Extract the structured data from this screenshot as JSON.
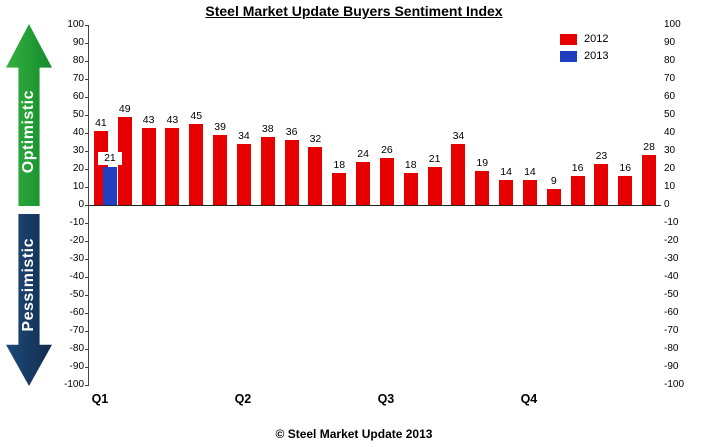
{
  "title": "Steel Market Update Buyers Sentiment Index",
  "footer": "© Steel Market Update 2013",
  "axis": {
    "optimistic_label": "Optimistic",
    "pessimistic_label": "Pessimistic",
    "optimistic_color": "#1f9a34",
    "pessimistic_color": "#17375e"
  },
  "chart_data": {
    "type": "bar",
    "title": "Steel Market Update Buyers Sentiment Index",
    "ylabel": "",
    "xlabel": "",
    "ylim": [
      -100,
      100
    ],
    "y_tick_step": 10,
    "grid": false,
    "legend_position": "top-right",
    "x_tick_labels": [
      "Q1",
      "Q2",
      "Q3",
      "Q4"
    ],
    "x_tick_slots": [
      0.5,
      6.5,
      12.5,
      18.5
    ],
    "series": [
      {
        "name": "2012",
        "color": "#e60000",
        "values": [
          41,
          49,
          43,
          43,
          45,
          39,
          34,
          38,
          36,
          32,
          18,
          24,
          26,
          18,
          21,
          34,
          19,
          14,
          14,
          9,
          16,
          23,
          16,
          28
        ]
      },
      {
        "name": "2013",
        "color": "#1f3fc0",
        "values": [
          21
        ],
        "overlay_slot": 0
      }
    ]
  }
}
